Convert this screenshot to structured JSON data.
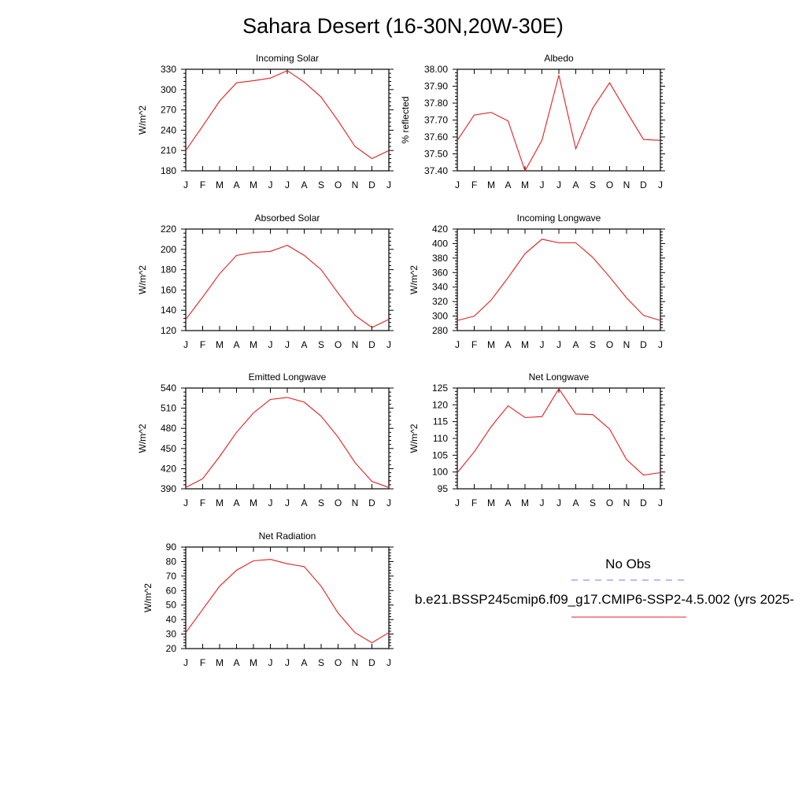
{
  "title": "Sahara Desert (16-30N,20W-30E)",
  "legend": {
    "obs_label": "No Obs",
    "model_label": "b.e21.BSSP245cmip6.f09_g17.CMIP6-SSP2-4.5.002 (yrs 2025-",
    "obs_color": "#7777ee",
    "model_color": "#e02020"
  },
  "chart_data": [
    {
      "type": "line",
      "title": "Incoming Solar",
      "ylabel": "W/m^2",
      "categories": [
        "J",
        "F",
        "M",
        "A",
        "M",
        "J",
        "J",
        "A",
        "S",
        "O",
        "N",
        "D",
        "J"
      ],
      "ylim": [
        180,
        330
      ],
      "yticks": [
        180,
        210,
        240,
        270,
        300,
        330
      ],
      "ytick_labels": [
        "180",
        "210",
        "240",
        "270",
        "300",
        "330"
      ],
      "series": [
        {
          "values": [
            210,
            246,
            283,
            310,
            313,
            317,
            328,
            311,
            289,
            254,
            216,
            198,
            210
          ]
        }
      ]
    },
    {
      "type": "line",
      "title": "Albedo",
      "ylabel": "% reflected",
      "categories": [
        "J",
        "F",
        "M",
        "A",
        "M",
        "J",
        "J",
        "A",
        "S",
        "O",
        "N",
        "D",
        "J"
      ],
      "ylim": [
        37.4,
        38.0
      ],
      "yticks": [
        37.4,
        37.5,
        37.6,
        37.7,
        37.8,
        37.9,
        38.0
      ],
      "ytick_labels": [
        "37.40",
        "37.50",
        "37.60",
        "37.70",
        "37.80",
        "37.90",
        "38.00"
      ],
      "series": [
        {
          "values": [
            37.58,
            37.73,
            37.745,
            37.695,
            37.4,
            37.58,
            37.965,
            37.53,
            37.77,
            37.92,
            37.75,
            37.585,
            37.58
          ]
        }
      ]
    },
    {
      "type": "line",
      "title": "Absorbed Solar",
      "ylabel": "W/m^2",
      "categories": [
        "J",
        "F",
        "M",
        "A",
        "M",
        "J",
        "J",
        "A",
        "S",
        "O",
        "N",
        "D",
        "J"
      ],
      "ylim": [
        120,
        220
      ],
      "yticks": [
        120,
        140,
        160,
        180,
        200,
        220
      ],
      "ytick_labels": [
        "120",
        "140",
        "160",
        "180",
        "200",
        "220"
      ],
      "series": [
        {
          "values": [
            131,
            153,
            176,
            194,
            197,
            198,
            204,
            194,
            180,
            157,
            135,
            123,
            131
          ]
        }
      ]
    },
    {
      "type": "line",
      "title": "Incoming Longwave",
      "ylabel": "W/m^2",
      "categories": [
        "J",
        "F",
        "M",
        "A",
        "M",
        "J",
        "J",
        "A",
        "S",
        "O",
        "N",
        "D",
        "J"
      ],
      "ylim": [
        280,
        420
      ],
      "yticks": [
        280,
        300,
        320,
        340,
        360,
        380,
        400,
        420
      ],
      "ytick_labels": [
        "280",
        "300",
        "320",
        "340",
        "360",
        "380",
        "400",
        "420"
      ],
      "series": [
        {
          "values": [
            294,
            300,
            322,
            353,
            386,
            406,
            401,
            401,
            381,
            354,
            325,
            301,
            294
          ]
        }
      ]
    },
    {
      "type": "line",
      "title": "Emitted Longwave",
      "ylabel": "W/m^2",
      "categories": [
        "J",
        "F",
        "M",
        "A",
        "M",
        "J",
        "J",
        "A",
        "S",
        "O",
        "N",
        "D",
        "J"
      ],
      "ylim": [
        390,
        540
      ],
      "yticks": [
        390,
        420,
        450,
        480,
        510,
        540
      ],
      "ytick_labels": [
        "390",
        "420",
        "450",
        "480",
        "510",
        "540"
      ],
      "series": [
        {
          "values": [
            392,
            405,
            438,
            474,
            503,
            523,
            526,
            519,
            498,
            467,
            429,
            401,
            392
          ]
        }
      ]
    },
    {
      "type": "line",
      "title": "Net Longwave",
      "ylabel": "W/m^2",
      "categories": [
        "J",
        "F",
        "M",
        "A",
        "M",
        "J",
        "J",
        "A",
        "S",
        "O",
        "N",
        "D",
        "J"
      ],
      "ylim": [
        95,
        125
      ],
      "yticks": [
        95,
        100,
        105,
        110,
        115,
        120,
        125
      ],
      "ytick_labels": [
        "95",
        "100",
        "105",
        "110",
        "115",
        "120",
        "125"
      ],
      "series": [
        {
          "values": [
            99.8,
            106,
            113.5,
            119.7,
            116.2,
            116.5,
            124.8,
            117.3,
            117.1,
            112.8,
            103.7,
            99.1,
            99.8
          ]
        }
      ]
    },
    {
      "type": "line",
      "title": "Net Radiation",
      "ylabel": "W/m^2",
      "categories": [
        "J",
        "F",
        "M",
        "A",
        "M",
        "J",
        "J",
        "A",
        "S",
        "O",
        "N",
        "D",
        "J"
      ],
      "ylim": [
        20,
        90
      ],
      "yticks": [
        20,
        30,
        40,
        50,
        60,
        70,
        80,
        90
      ],
      "ytick_labels": [
        "20",
        "30",
        "40",
        "50",
        "60",
        "70",
        "80",
        "90"
      ],
      "series": [
        {
          "values": [
            31,
            47,
            63,
            74,
            80.5,
            81.5,
            78.5,
            76.5,
            63,
            44.5,
            31,
            24,
            31
          ]
        }
      ]
    }
  ]
}
